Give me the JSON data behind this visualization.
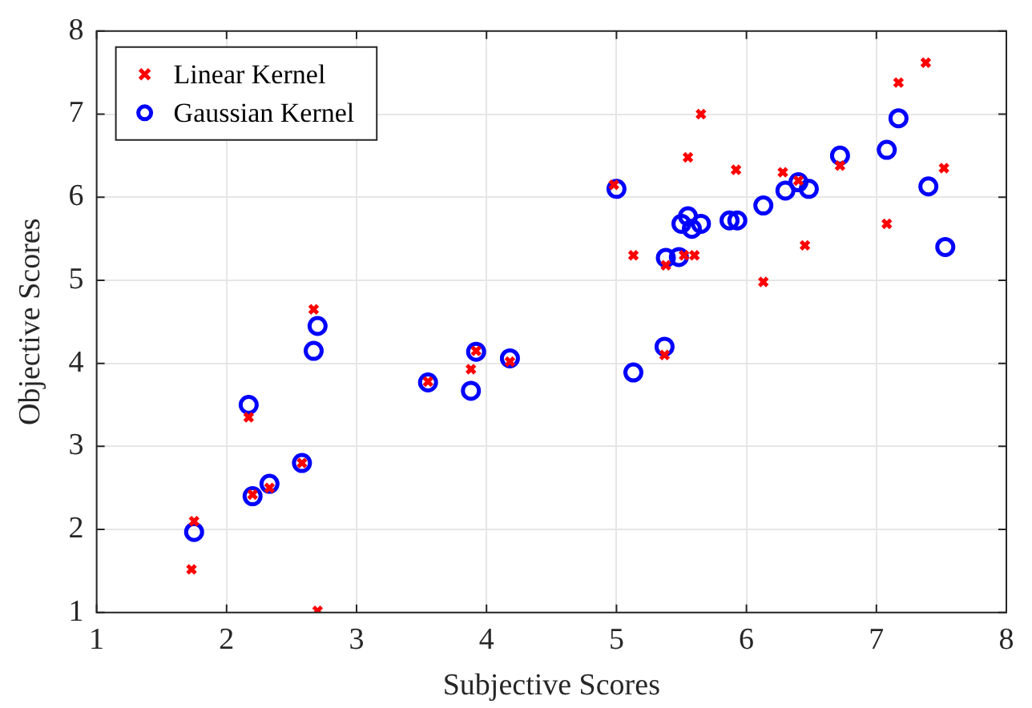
{
  "chart_data": {
    "type": "scatter",
    "xlabel": "Subjective Scores",
    "ylabel": "Objective Scores",
    "xlim": [
      1,
      8
    ],
    "ylim": [
      1,
      8
    ],
    "xticks": [
      1,
      2,
      3,
      4,
      5,
      6,
      7,
      8
    ],
    "yticks": [
      1,
      2,
      3,
      4,
      5,
      6,
      7,
      8
    ],
    "grid": true,
    "legend": "top left",
    "series": [
      {
        "name": "Linear Kernel",
        "color": "#ff0000",
        "marker": "cross",
        "x": [
          1.73,
          1.75,
          2.17,
          2.2,
          2.33,
          2.58,
          2.67,
          2.7,
          3.55,
          3.88,
          3.92,
          4.18,
          4.98,
          5.13,
          5.37,
          5.38,
          5.5,
          5.52,
          5.55,
          5.6,
          5.65,
          5.92,
          6.13,
          6.28,
          6.4,
          6.45,
          6.72,
          7.08,
          7.17,
          7.38,
          7.52
        ],
        "values": [
          1.52,
          2.1,
          3.35,
          2.42,
          2.5,
          2.8,
          4.65,
          1.02,
          3.78,
          3.93,
          4.15,
          4.02,
          6.15,
          5.3,
          4.1,
          5.18,
          null,
          5.3,
          6.48,
          5.3,
          7.0,
          6.33,
          4.98,
          6.3,
          6.2,
          5.42,
          6.38,
          5.68,
          7.38,
          7.62,
          6.35
        ]
      },
      {
        "name": "Gaussian Kernel",
        "color": "#0000ff",
        "marker": "circle",
        "x": [
          1.75,
          2.17,
          2.2,
          2.33,
          2.58,
          2.67,
          2.7,
          3.55,
          3.88,
          3.92,
          4.18,
          5.0,
          5.13,
          5.37,
          5.38,
          5.48,
          5.5,
          5.55,
          5.58,
          5.65,
          5.87,
          5.93,
          6.13,
          6.3,
          6.35,
          6.4,
          6.48,
          6.72,
          7.08,
          7.17,
          7.4,
          7.53
        ],
        "values": [
          1.97,
          3.5,
          2.4,
          2.55,
          2.8,
          4.15,
          4.45,
          3.77,
          3.67,
          4.14,
          4.06,
          6.1,
          3.89,
          4.2,
          5.27,
          5.28,
          5.68,
          5.77,
          5.62,
          5.68,
          5.72,
          5.72,
          5.9,
          6.08,
          null,
          6.18,
          6.1,
          6.5,
          6.57,
          6.95,
          6.13,
          5.4
        ]
      }
    ]
  }
}
